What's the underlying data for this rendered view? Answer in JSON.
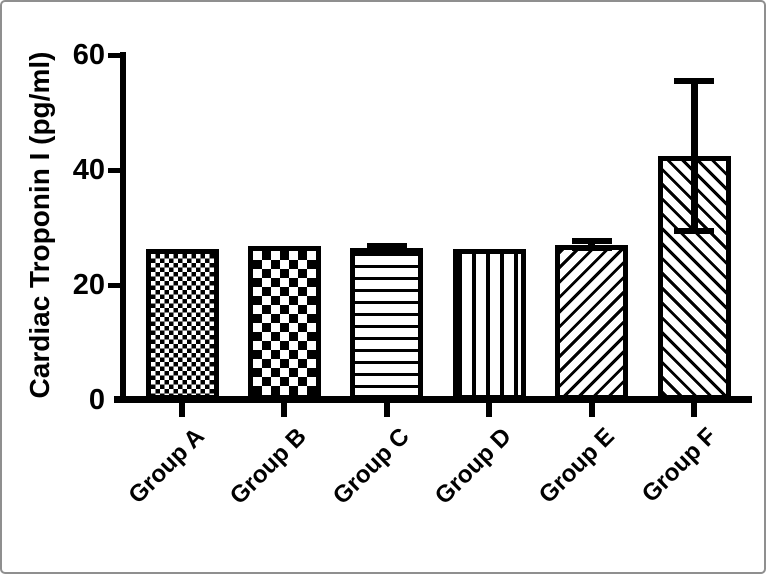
{
  "figure": {
    "background": "#ffffff",
    "frame_border_color": "#8f8f8f",
    "ink_color": "#000000"
  },
  "chart_data": {
    "type": "bar",
    "title": "",
    "xlabel": "",
    "ylabel": "Cardiac Troponin I (pg/ml)",
    "categories": [
      "Group A",
      "Group B",
      "Group C",
      "Group D",
      "Group E",
      "Group F"
    ],
    "values": [
      26.2,
      26.7,
      26.5,
      26.3,
      27.0,
      42.4
    ],
    "errors": [
      0,
      0,
      0.3,
      0,
      0.6,
      13.0
    ],
    "ylim": [
      0,
      60
    ],
    "yticks": [
      0,
      20,
      40,
      60
    ],
    "grid": false,
    "legend": null,
    "bar_fill": "white with black pattern",
    "bar_outline_color": "#000000",
    "bar_patterns": [
      "fine-checkerboard",
      "coarse-checkerboard",
      "horizontal-lines",
      "vertical-lines",
      "diagonal-forward-hatch",
      "diagonal-back-hatch"
    ]
  }
}
